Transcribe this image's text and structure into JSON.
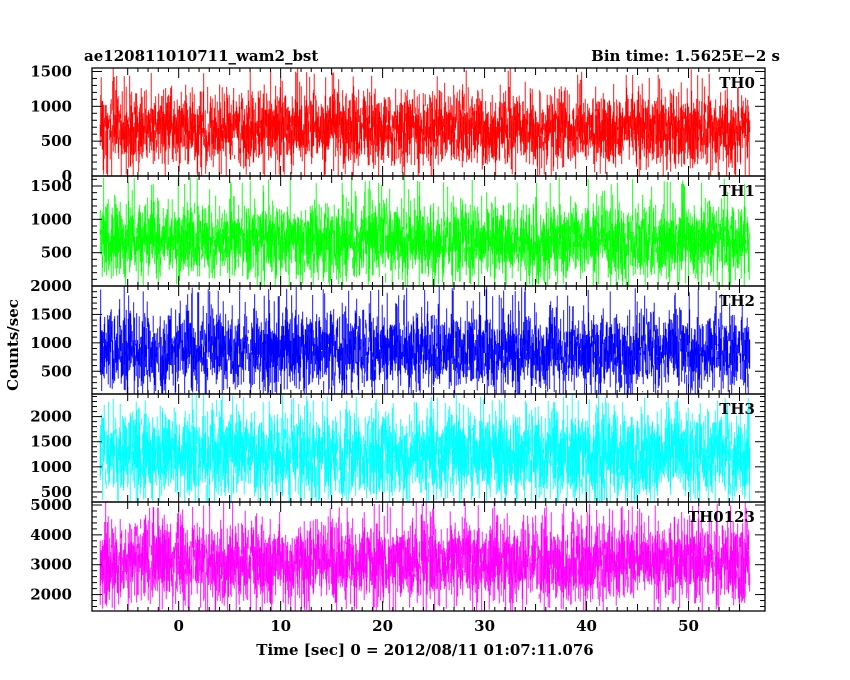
{
  "header": {
    "title": "ae120811010711_wam2_bst",
    "bin_time": "Bin time: 1.5625E−2 s"
  },
  "chart_data": {
    "type": "line",
    "xlabel": "Time [sec] 0 = 2012/08/11 01:07:11.076",
    "ylabel": "Counts/sec",
    "xlim": [
      -8.5,
      57.5
    ],
    "x_ticks": [
      "0",
      "10",
      "20",
      "30",
      "40",
      "50"
    ],
    "x_data_range": [
      -7.7,
      56.0
    ],
    "panels": [
      {
        "name": "TH0",
        "color": "#ff0000",
        "ylim": [
          0,
          1550
        ],
        "yticks": [
          0,
          500,
          1000,
          1500
        ],
        "ytick_labels": [
          "0",
          "500",
          "1000",
          "1500"
        ],
        "mean": 680,
        "typical_min": 100,
        "typical_max": 1250,
        "peak": 1550
      },
      {
        "name": "TH1",
        "color": "#00ff00",
        "ylim": [
          0,
          1650
        ],
        "yticks": [
          500,
          1000,
          1500
        ],
        "ytick_labels": [
          "500",
          "1000",
          "1500"
        ],
        "mean": 680,
        "typical_min": 100,
        "typical_max": 1300,
        "peak": 1650
      },
      {
        "name": "TH2",
        "color": "#0000ff",
        "ylim": [
          100,
          2000
        ],
        "yticks": [
          500,
          1000,
          1500,
          2000
        ],
        "ytick_labels": [
          "500",
          "1000",
          "1500",
          "2000"
        ],
        "mean": 850,
        "typical_min": 200,
        "typical_max": 1700,
        "peak": 2000
      },
      {
        "name": "TH3",
        "color": "#00ffff",
        "ylim": [
          300,
          2450
        ],
        "yticks": [
          500,
          1000,
          1500,
          2000
        ],
        "ytick_labels": [
          "500",
          "1000",
          "1500",
          "2000"
        ],
        "mean": 1250,
        "typical_min": 450,
        "typical_max": 2300,
        "peak": 2450
      },
      {
        "name": "TH0123",
        "color": "#ff00ff",
        "ylim": [
          1450,
          5100
        ],
        "yticks": [
          2000,
          3000,
          4000,
          5000
        ],
        "ytick_labels": [
          "2000",
          "3000",
          "4000",
          "5000"
        ],
        "mean": 3100,
        "typical_min": 1800,
        "typical_max": 4700,
        "peak": 5100
      }
    ]
  }
}
